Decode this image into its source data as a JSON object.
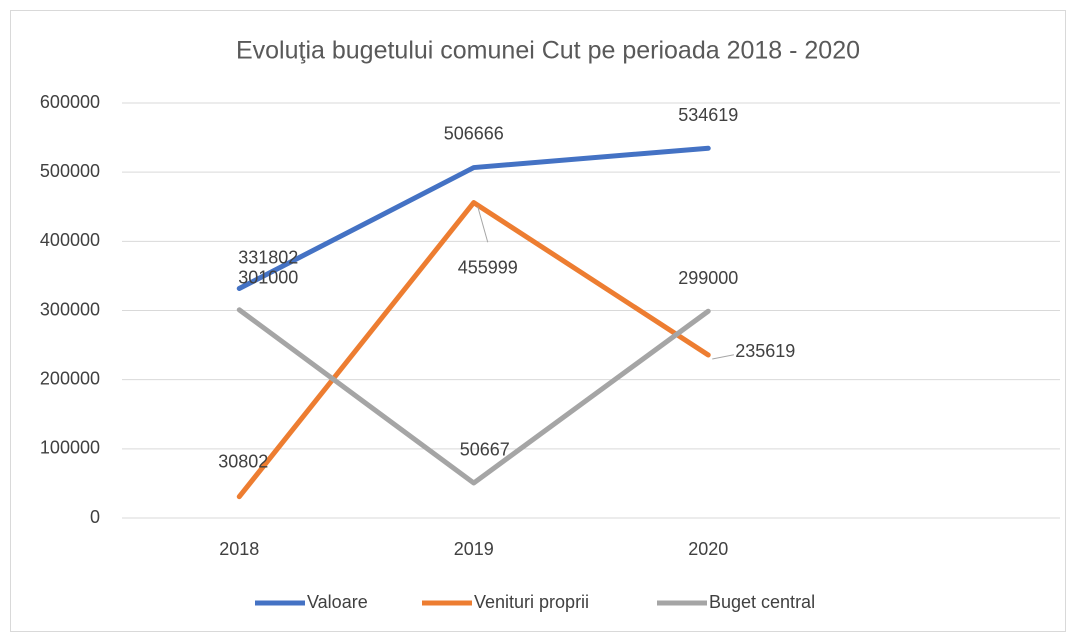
{
  "chart_data": {
    "type": "line",
    "title": "Evoluţia bugetului comunei Cut pe perioada 2018 - 2020",
    "categories": [
      "2018",
      "2019",
      "2020",
      null
    ],
    "series": [
      {
        "name": "Valoare",
        "color": "#4472c4",
        "values": [
          331802,
          506666,
          534619,
          null
        ]
      },
      {
        "name": "Venituri proprii",
        "color": "#ed7d31",
        "values": [
          30802,
          455999,
          235619,
          null
        ]
      },
      {
        "name": "Buget central",
        "color": "#a5a5a5",
        "values": [
          301000,
          50667,
          299000,
          null
        ]
      }
    ],
    "ylim": [
      0,
      600000
    ],
    "yticks": [
      0,
      100000,
      200000,
      300000,
      400000,
      500000,
      600000
    ],
    "grid": true,
    "legend": "bottom",
    "data_labels": true
  }
}
